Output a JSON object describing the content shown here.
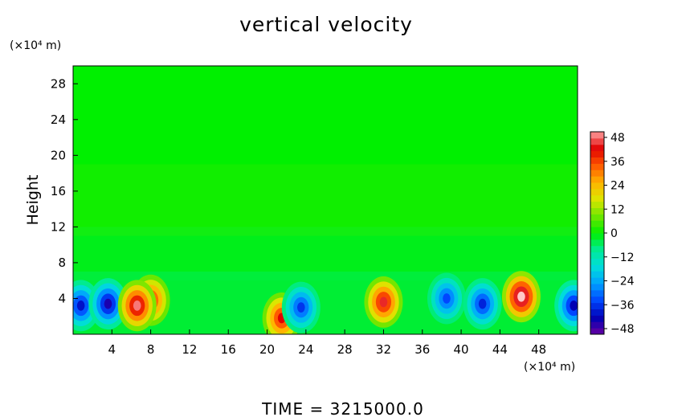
{
  "chart_data": {
    "type": "heatmap",
    "title": "vertical velocity",
    "ylabel": "Height",
    "x_unit_label": "(×10⁴ m)",
    "y_unit_label": "(×10⁴ m)",
    "xlim": [
      0,
      52
    ],
    "ylim": [
      0,
      30
    ],
    "x_ticks": [
      "4",
      "8",
      "12",
      "16",
      "20",
      "24",
      "28",
      "32",
      "36",
      "40",
      "44",
      "48"
    ],
    "y_ticks": [
      "4",
      "8",
      "12",
      "16",
      "20",
      "24",
      "28"
    ],
    "colorbar": {
      "range": [
        -48,
        48
      ],
      "ticks": [
        "48",
        "36",
        "24",
        "12",
        "0",
        "−12",
        "−24",
        "−36",
        "−48"
      ]
    },
    "footer": "TIME  =  3215000.0",
    "features": [
      {
        "x": 0.8,
        "y": 3.2,
        "value": -38
      },
      {
        "x": 3.6,
        "y": 3.4,
        "value": -42
      },
      {
        "x": 8.0,
        "y": 3.8,
        "value": 38
      },
      {
        "x": 6.6,
        "y": 3.2,
        "value": 46
      },
      {
        "x": 21.5,
        "y": 1.8,
        "value": 40
      },
      {
        "x": 23.5,
        "y": 3.0,
        "value": -34
      },
      {
        "x": 32.0,
        "y": 3.6,
        "value": 42
      },
      {
        "x": 38.5,
        "y": 4.0,
        "value": -32
      },
      {
        "x": 42.2,
        "y": 3.4,
        "value": -36
      },
      {
        "x": 46.2,
        "y": 4.2,
        "value": 52
      },
      {
        "x": 51.6,
        "y": 3.2,
        "value": -40
      }
    ]
  }
}
